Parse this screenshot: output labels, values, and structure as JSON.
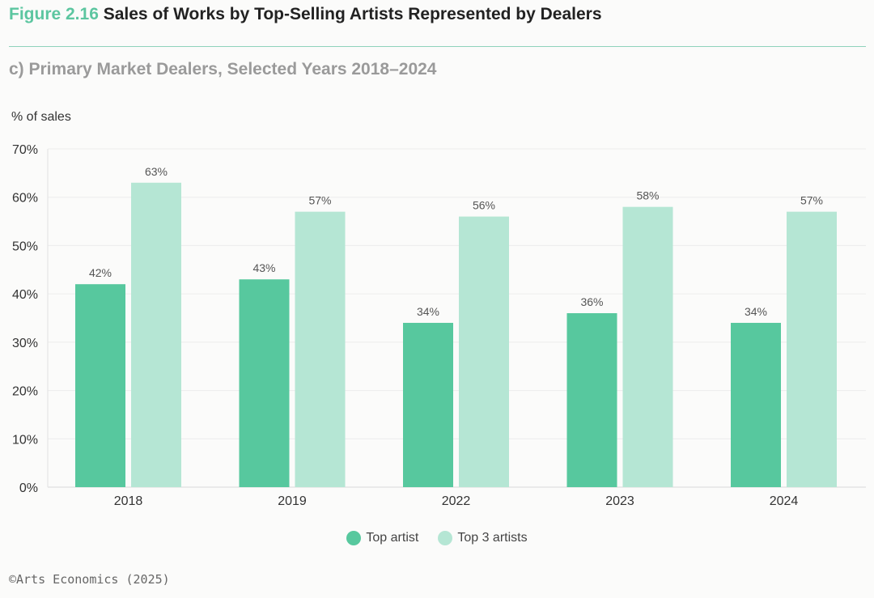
{
  "header": {
    "figure_number": "Figure 2.16",
    "title": "Sales of Works by Top-Selling Artists Represented by Dealers",
    "subtitle": "c) Primary Market Dealers, Selected Years 2018–2024"
  },
  "chart_data": {
    "type": "bar",
    "ylabel": "% of sales",
    "xlabel": "",
    "categories": [
      "2018",
      "2019",
      "2022",
      "2023",
      "2024"
    ],
    "series": [
      {
        "name": "Top artist",
        "color": "#57c89e",
        "values": [
          42,
          43,
          34,
          36,
          34
        ]
      },
      {
        "name": "Top 3 artists",
        "color": "#b5e6d4",
        "values": [
          63,
          57,
          56,
          58,
          57
        ]
      }
    ],
    "ylim": [
      0,
      70
    ],
    "yticks": [
      0,
      10,
      20,
      30,
      40,
      50,
      60,
      70
    ],
    "tick_suffix": "%",
    "data_label_suffix": "%",
    "grid": true,
    "legend_position": "bottom-center"
  },
  "footer": {
    "credit": "©Arts Economics (2025)"
  }
}
